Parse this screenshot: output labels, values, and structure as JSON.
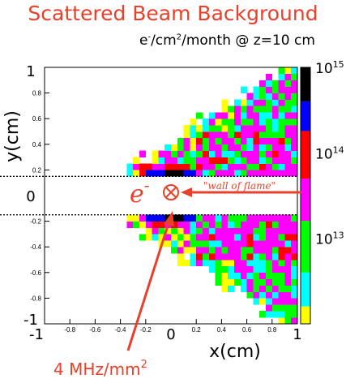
{
  "title": "Scattered Beam Background",
  "subtitle": {
    "pre": "e",
    "sup1": "-",
    "mid": "/cm",
    "sup2": "2",
    "post": "/month @ z=10 cm"
  },
  "chart_data": {
    "type": "heatmap",
    "title": "Scattered Beam Background",
    "subtitle": "e-/cm2/month @ z=10 cm",
    "xlabel": "x(cm)",
    "ylabel": "y(cm)",
    "xlim": [
      -1,
      1
    ],
    "ylim": [
      -1,
      1
    ],
    "x_ticks_small": [
      "-0.8",
      "-0.6",
      "-0.4",
      "-0.2",
      "0.2",
      "0.4",
      "0.6",
      "0.8"
    ],
    "x_ticks_small_values": [
      -0.8,
      -0.6,
      -0.4,
      -0.2,
      0.2,
      0.4,
      0.6,
      0.8
    ],
    "x_ticks_large": [
      "-1",
      "0",
      "1"
    ],
    "x_ticks_large_values": [
      -1,
      0,
      1
    ],
    "y_ticks_small": [
      "0.8",
      "0.6",
      "0.4",
      "0.2",
      "-0.2",
      "-0.4",
      "-0.6",
      "-0.8"
    ],
    "y_ticks_small_values": [
      0.8,
      0.6,
      0.4,
      0.2,
      -0.2,
      -0.4,
      -0.6,
      -0.8
    ],
    "y_ticks_large": [
      "1",
      "0",
      "-1"
    ],
    "y_ticks_large_values": [
      1,
      0,
      -1
    ],
    "colorbar": {
      "scale": "log",
      "range": [
        1000000000000.0,
        1000000000000000.0
      ],
      "labels": [
        {
          "base": "10",
          "exp": "15",
          "value": 1000000000000000.0
        },
        {
          "base": "10",
          "exp": "14",
          "value": 100000000000000.0
        },
        {
          "base": "10",
          "exp": "13",
          "value": 10000000000000.0
        }
      ],
      "colors": [
        "#ffff00",
        "#00ff00",
        "#00ffff",
        "#ff00ff",
        "#ff0000",
        "#0000ff",
        "#000000"
      ]
    },
    "beam_gap_y": [
      -0.15,
      0.15
    ],
    "annotations": {
      "electron_symbol": "e",
      "electron_sup": "-",
      "wall_label": "\"wall of flame\"",
      "rate_label": "4 MHz/mm",
      "rate_sup": "2"
    },
    "colors": {
      "accent": "#e8402a",
      "yellow": "#ffff00",
      "green": "#00ff00",
      "cyan": "#00ffff",
      "magenta": "#ff00ff",
      "red": "#ff0000",
      "blue": "#0000ff",
      "black": "#000000"
    }
  }
}
